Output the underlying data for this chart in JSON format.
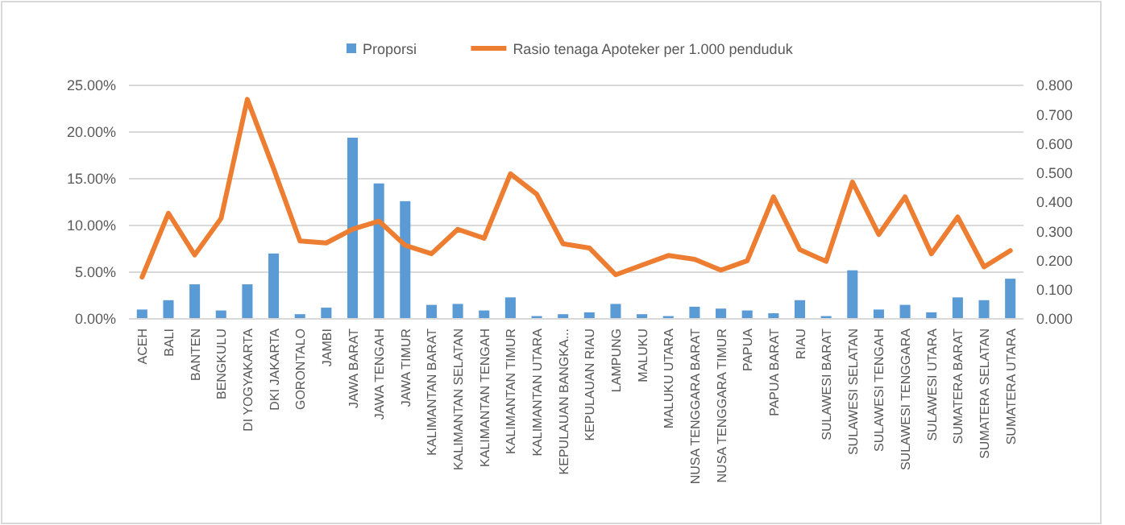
{
  "chart_data": {
    "type": "bar",
    "categories": [
      "ACEH",
      "BALI",
      "BANTEN",
      "BENGKULU",
      "DI YOGYAKARTA",
      "DKI JAKARTA",
      "GORONTALO",
      "JAMBI",
      "JAWA BARAT",
      "JAWA TENGAH",
      "JAWA TIMUR",
      "KALIMANTAN BARAT",
      "KALIMANTAN SELATAN",
      "KALIMANTAN TENGAH",
      "KALIMANTAN TIMUR",
      "KALIMANTAN UTARA",
      "KEPULAUAN BANGKA...",
      "KEPULAUAN RIAU",
      "LAMPUNG",
      "MALUKU",
      "MALUKU UTARA",
      "NUSA TENGGARA BARAT",
      "NUSA TENGGARA TIMUR",
      "PAPUA",
      "PAPUA BARAT",
      "RIAU",
      "SULAWESI BARAT",
      "SULAWESI SELATAN",
      "SULAWESI TENGAH",
      "SULAWESI TENGGARA",
      "SULAWESI UTARA",
      "SUMATERA BARAT",
      "SUMATERA SELATAN",
      "SUMATERA UTARA"
    ],
    "series": [
      {
        "name": "Proporsi",
        "color": "#5b9bd5",
        "values": [
          1.0,
          2.0,
          3.7,
          0.9,
          3.7,
          7.0,
          0.5,
          1.2,
          19.4,
          14.5,
          12.6,
          1.5,
          1.6,
          0.9,
          2.3,
          0.3,
          0.5,
          0.7,
          1.6,
          0.5,
          0.3,
          1.3,
          1.1,
          0.9,
          0.6,
          2.0,
          0.3,
          5.2,
          1.0,
          1.5,
          0.7,
          2.3,
          2.0,
          4.3
        ]
      },
      {
        "name": "Rasio tenaga Apoteker per 1.000 penduduk",
        "type": "line",
        "axis": "y2",
        "color": "#ed7d31",
        "values": [
          0.143,
          0.362,
          0.219,
          0.344,
          0.752,
          0.515,
          0.267,
          0.26,
          0.307,
          0.335,
          0.252,
          0.223,
          0.307,
          0.276,
          0.497,
          0.427,
          0.257,
          0.243,
          0.151,
          0.184,
          0.217,
          0.204,
          0.167,
          0.199,
          0.418,
          0.237,
          0.197,
          0.469,
          0.289,
          0.418,
          0.223,
          0.349,
          0.178,
          0.234
        ]
      }
    ],
    "ylim": [
      0,
      25
    ],
    "yticks": [
      {
        "value": 0,
        "label": "0.00%"
      },
      {
        "value": 5,
        "label": "5.00%"
      },
      {
        "value": 10,
        "label": "10.00%"
      },
      {
        "value": 15,
        "label": "15.00%"
      },
      {
        "value": 20,
        "label": "20.00%"
      },
      {
        "value": 25,
        "label": "25.00%"
      }
    ],
    "y2lim": [
      0,
      0.8
    ],
    "y2ticks": [
      {
        "value": 0,
        "label": "0.000"
      },
      {
        "value": 0.1,
        "label": "0.100"
      },
      {
        "value": 0.2,
        "label": "0.200"
      },
      {
        "value": 0.3,
        "label": "0.300"
      },
      {
        "value": 0.4,
        "label": "0.400"
      },
      {
        "value": 0.5,
        "label": "0.500"
      },
      {
        "value": 0.6,
        "label": "0.600"
      },
      {
        "value": 0.7,
        "label": "0.700"
      },
      {
        "value": 0.8,
        "label": "0.800"
      }
    ],
    "grid": "y",
    "legend": "top",
    "line_style": "solid",
    "marker": "none"
  }
}
